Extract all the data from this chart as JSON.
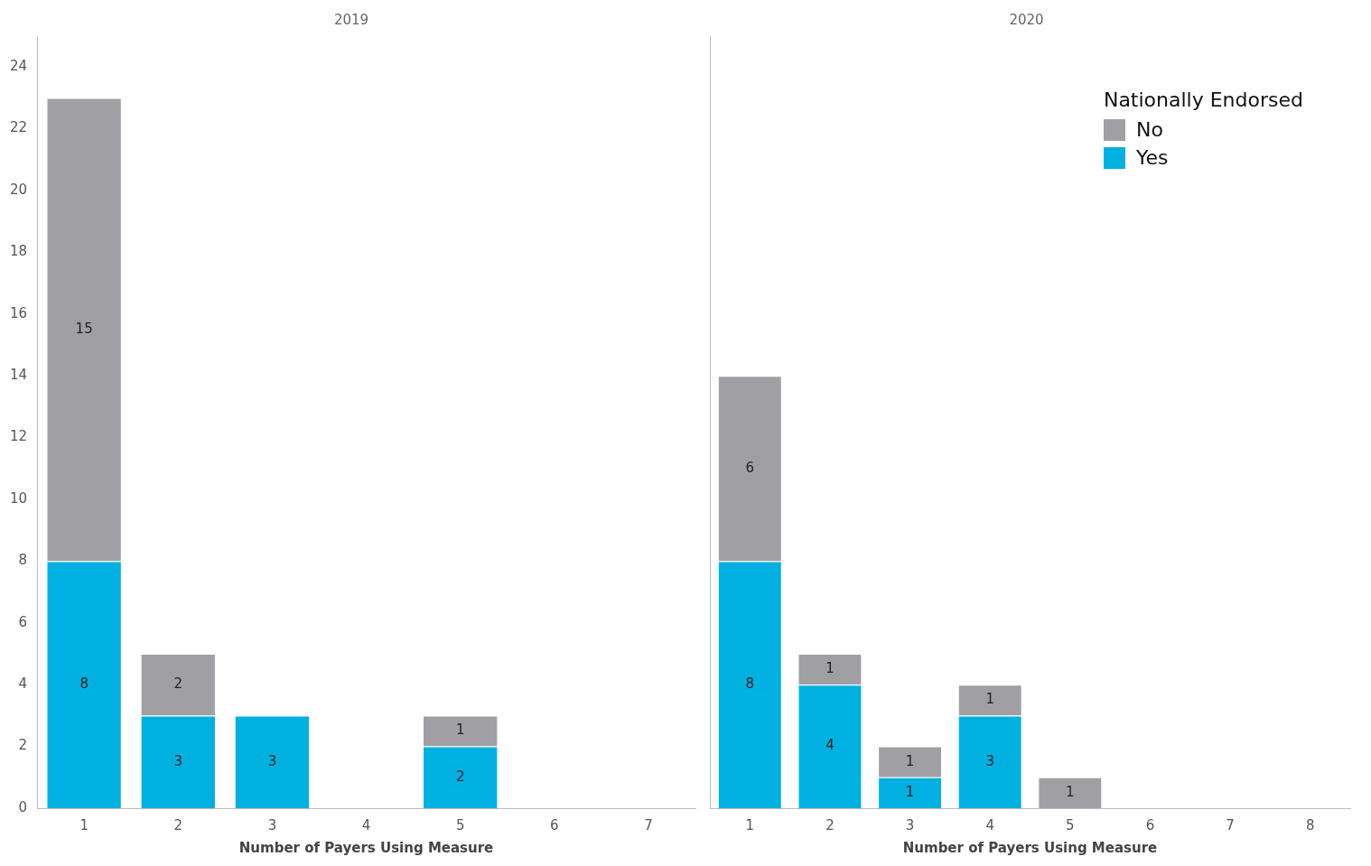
{
  "chart_data": [
    {
      "type": "bar",
      "title": "2019",
      "xlabel": "Number of Payers Using Measure",
      "categories": [
        "1",
        "2",
        "3",
        "4",
        "5",
        "6",
        "7"
      ],
      "stacked": true,
      "data_labels": true,
      "ylim": [
        0,
        25
      ],
      "yticks": [
        0,
        2,
        4,
        6,
        8,
        10,
        12,
        14,
        16,
        18,
        20,
        22,
        24
      ],
      "grid": false,
      "legend": false,
      "series": [
        {
          "color": "#00b0e0",
          "values": [
            8,
            3,
            3,
            null,
            2,
            null,
            null
          ]
        },
        {
          "color": "#a0a0a4",
          "values": [
            15,
            2,
            null,
            null,
            1,
            null,
            null
          ]
        }
      ]
    },
    {
      "type": "bar",
      "title": "2020",
      "xlabel": "Number of Payers Using Measure",
      "categories": [
        "1",
        "2",
        "3",
        "4",
        "5",
        "6",
        "7",
        "8"
      ],
      "stacked": true,
      "data_labels": true,
      "ylim": [
        0,
        25
      ],
      "yticks": [
        0,
        2,
        4,
        6,
        8,
        10,
        12,
        14,
        16,
        18,
        20,
        22,
        24
      ],
      "tick_labels": "x",
      "grid": false,
      "legend": "top right",
      "legend_title": "Nationally Endorsed",
      "series": [
        {
          "name": "Yes",
          "color": "#00b0e0",
          "values": [
            8,
            4,
            1,
            3,
            null,
            null,
            null,
            null
          ]
        },
        {
          "name": "No",
          "color": "#a0a0a4",
          "values": [
            6,
            1,
            1,
            1,
            1,
            null,
            null,
            null
          ]
        }
      ]
    }
  ]
}
